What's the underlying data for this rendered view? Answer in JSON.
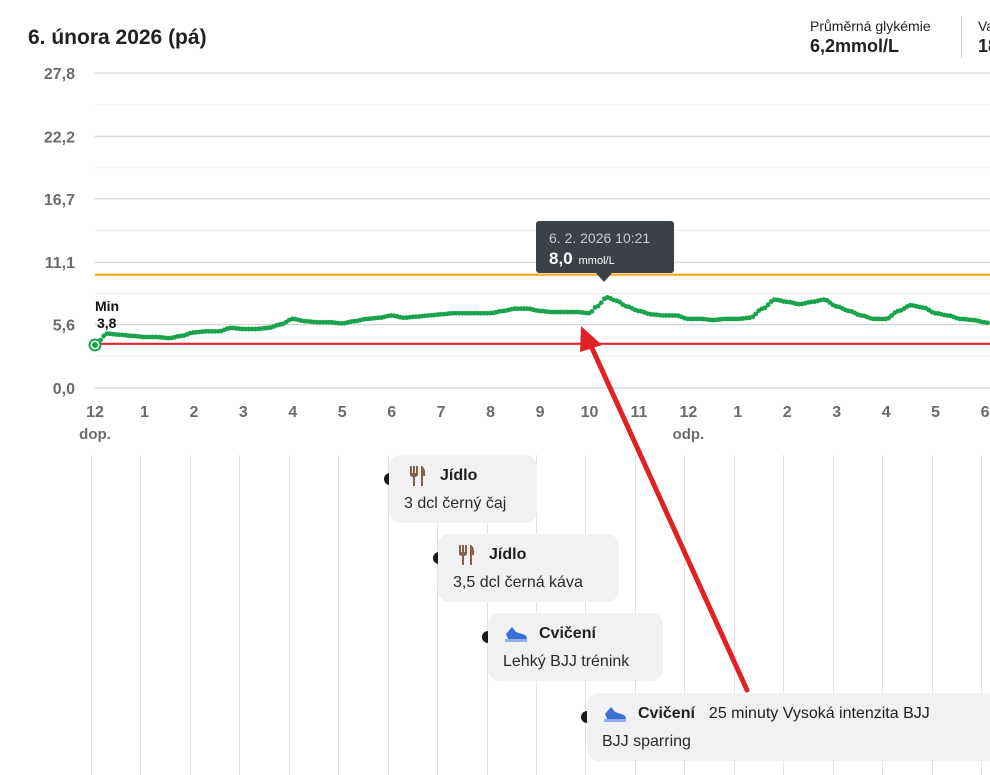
{
  "header": {
    "date": "6. února 2026 (pá)",
    "stats": [
      {
        "label": "Průměrná glykémie",
        "value": "6,2mmol/L"
      },
      {
        "label": "Va",
        "value": "18"
      }
    ]
  },
  "colors": {
    "glucose_line": "#1aa34a",
    "high_threshold": "#f2a81d",
    "low_threshold": "#e3262d",
    "annotation_arrow": "#e12126"
  },
  "chart_data": {
    "type": "line",
    "title": "",
    "xlabel": "",
    "ylabel": "",
    "y_unit": "mmol/L",
    "ylim": [
      0,
      27.8
    ],
    "y_ticks": [
      "27,8",
      "22,2",
      "16,7",
      "11,1",
      "5,6",
      "0,0"
    ],
    "y_tick_values": [
      27.8,
      22.2,
      16.7,
      11.1,
      5.6,
      0.0
    ],
    "x_ticks": [
      {
        "hour": 0,
        "label": "12",
        "sub": "dop."
      },
      {
        "hour": 1,
        "label": "1",
        "sub": ""
      },
      {
        "hour": 2,
        "label": "2",
        "sub": ""
      },
      {
        "hour": 3,
        "label": "3",
        "sub": ""
      },
      {
        "hour": 4,
        "label": "4",
        "sub": ""
      },
      {
        "hour": 5,
        "label": "5",
        "sub": ""
      },
      {
        "hour": 6,
        "label": "6",
        "sub": ""
      },
      {
        "hour": 7,
        "label": "7",
        "sub": ""
      },
      {
        "hour": 8,
        "label": "8",
        "sub": ""
      },
      {
        "hour": 9,
        "label": "9",
        "sub": ""
      },
      {
        "hour": 10,
        "label": "10",
        "sub": ""
      },
      {
        "hour": 11,
        "label": "11",
        "sub": ""
      },
      {
        "hour": 12,
        "label": "12",
        "sub": "odp."
      },
      {
        "hour": 13,
        "label": "1",
        "sub": ""
      },
      {
        "hour": 14,
        "label": "2",
        "sub": ""
      },
      {
        "hour": 15,
        "label": "3",
        "sub": ""
      },
      {
        "hour": 16,
        "label": "4",
        "sub": ""
      },
      {
        "hour": 17,
        "label": "5",
        "sub": ""
      },
      {
        "hour": 18,
        "label": "6",
        "sub": ""
      }
    ],
    "x_range_hours": [
      0,
      18.1
    ],
    "high_threshold": 10.0,
    "low_threshold": 3.9,
    "series": [
      {
        "points": [
          [
            0.0,
            3.8
          ],
          [
            0.25,
            4.8
          ],
          [
            0.5,
            4.7
          ],
          [
            0.75,
            4.6
          ],
          [
            1.0,
            4.5
          ],
          [
            1.25,
            4.5
          ],
          [
            1.5,
            4.4
          ],
          [
            1.75,
            4.6
          ],
          [
            2.0,
            4.9
          ],
          [
            2.25,
            5.0
          ],
          [
            2.5,
            5.0
          ],
          [
            2.75,
            5.3
          ],
          [
            3.0,
            5.2
          ],
          [
            3.25,
            5.2
          ],
          [
            3.5,
            5.3
          ],
          [
            3.75,
            5.6
          ],
          [
            4.0,
            6.1
          ],
          [
            4.25,
            5.9
          ],
          [
            4.5,
            5.8
          ],
          [
            4.75,
            5.8
          ],
          [
            5.0,
            5.7
          ],
          [
            5.25,
            5.9
          ],
          [
            5.5,
            6.1
          ],
          [
            5.75,
            6.2
          ],
          [
            6.0,
            6.4
          ],
          [
            6.25,
            6.2
          ],
          [
            6.5,
            6.3
          ],
          [
            6.75,
            6.4
          ],
          [
            7.0,
            6.5
          ],
          [
            7.25,
            6.6
          ],
          [
            7.5,
            6.6
          ],
          [
            7.75,
            6.6
          ],
          [
            8.0,
            6.6
          ],
          [
            8.25,
            6.8
          ],
          [
            8.5,
            7.0
          ],
          [
            8.75,
            7.0
          ],
          [
            9.0,
            6.8
          ],
          [
            9.25,
            6.7
          ],
          [
            9.5,
            6.7
          ],
          [
            9.75,
            6.7
          ],
          [
            10.0,
            6.6
          ],
          [
            10.15,
            7.2
          ],
          [
            10.35,
            8.0
          ],
          [
            10.55,
            7.7
          ],
          [
            10.75,
            7.2
          ],
          [
            11.0,
            6.8
          ],
          [
            11.25,
            6.5
          ],
          [
            11.5,
            6.4
          ],
          [
            11.75,
            6.4
          ],
          [
            12.0,
            6.1
          ],
          [
            12.25,
            6.1
          ],
          [
            12.5,
            6.0
          ],
          [
            12.75,
            6.1
          ],
          [
            13.0,
            6.1
          ],
          [
            13.25,
            6.2
          ],
          [
            13.5,
            7.0
          ],
          [
            13.75,
            7.8
          ],
          [
            14.0,
            7.6
          ],
          [
            14.25,
            7.4
          ],
          [
            14.5,
            7.6
          ],
          [
            14.75,
            7.8
          ],
          [
            15.0,
            7.2
          ],
          [
            15.25,
            6.8
          ],
          [
            15.5,
            6.4
          ],
          [
            15.75,
            6.1
          ],
          [
            16.0,
            6.1
          ],
          [
            16.25,
            6.8
          ],
          [
            16.5,
            7.3
          ],
          [
            16.75,
            7.1
          ],
          [
            17.0,
            6.6
          ],
          [
            17.25,
            6.4
          ],
          [
            17.5,
            6.1
          ],
          [
            17.75,
            6.0
          ],
          [
            18.0,
            5.8
          ],
          [
            18.1,
            5.7
          ]
        ]
      }
    ],
    "min_marker": {
      "label": "Min",
      "value": "3,8",
      "hour": 0.0,
      "glucose": 3.8
    },
    "tooltip": {
      "datetime": "6. 2. 2026 10:21",
      "value": "8,0",
      "unit": "mmol/L",
      "hour": 10.35,
      "glucose": 8.0
    }
  },
  "events": [
    {
      "type": "Jídlo",
      "icon": "fork-knife-icon",
      "desc": "3 dcl černý čaj",
      "extra": "",
      "hour": 6.0
    },
    {
      "type": "Jídlo",
      "icon": "fork-knife-icon",
      "desc": "3,5 dcl černá káva",
      "extra": "",
      "hour": 7.0
    },
    {
      "type": "Cvičení",
      "icon": "sneaker-icon",
      "desc": "Lehký BJJ trénink",
      "extra": "",
      "hour": 8.0
    },
    {
      "type": "Cvičení",
      "icon": "sneaker-icon",
      "desc": "BJJ sparring",
      "extra": "25 minuty Vysoká intenzita BJJ",
      "hour": 10.0
    }
  ]
}
